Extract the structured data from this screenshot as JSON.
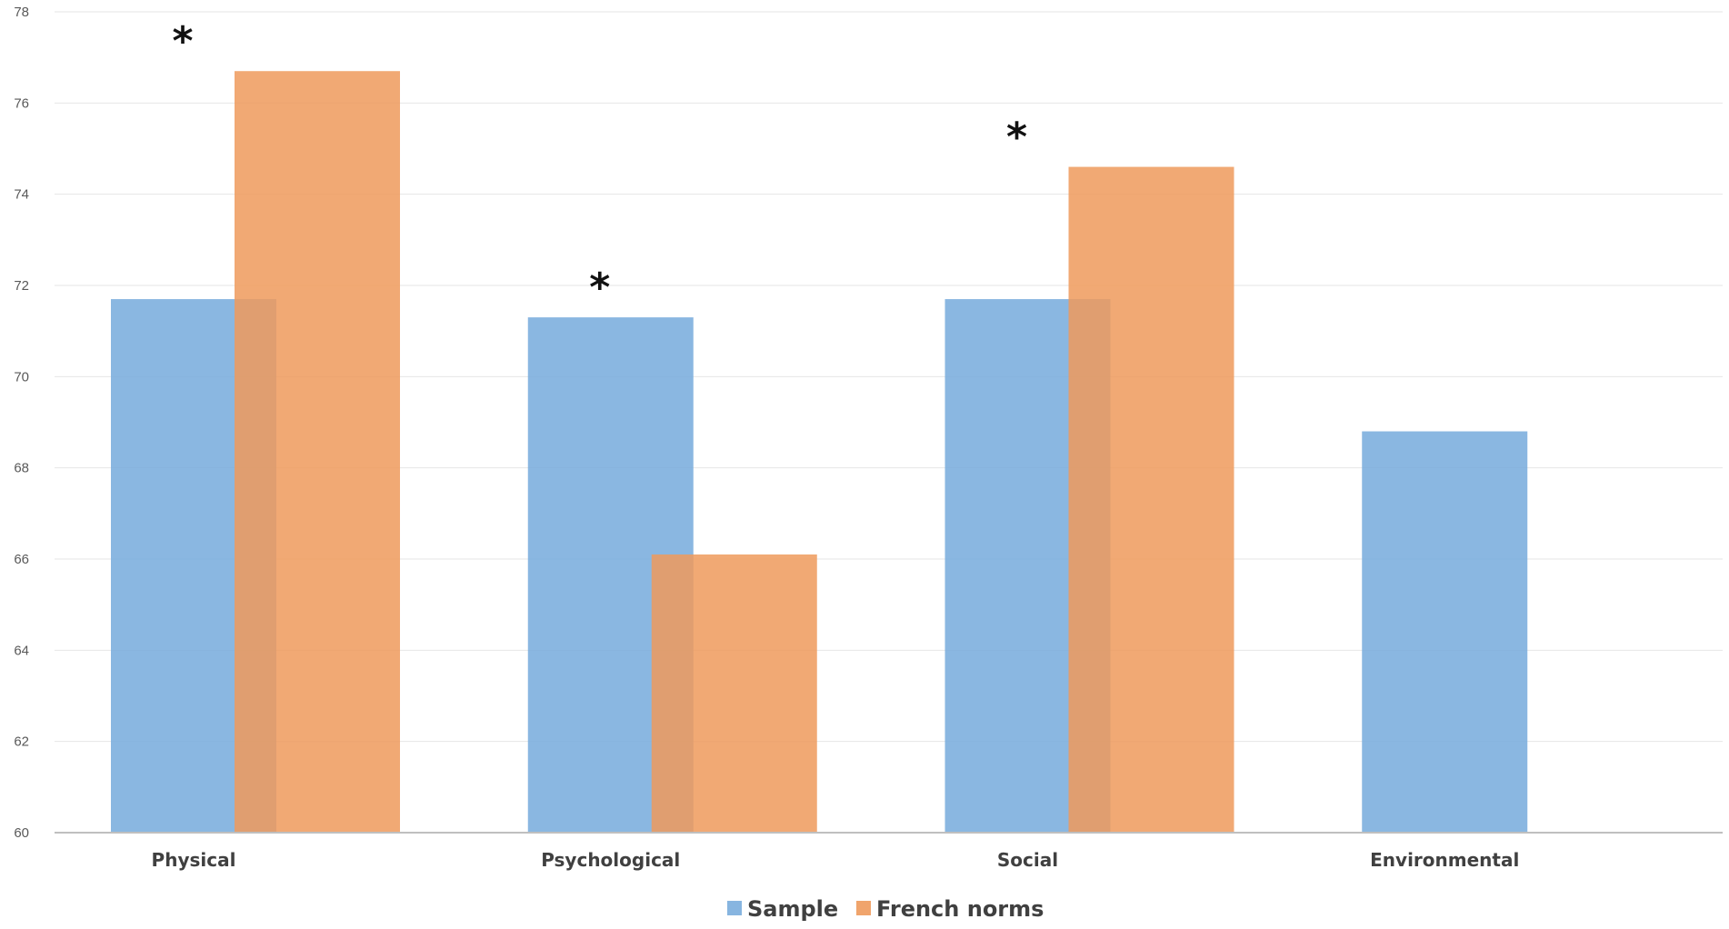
{
  "chart_data": {
    "type": "bar",
    "title": "",
    "xlabel": "",
    "ylabel": "",
    "categories": [
      "Physical",
      "Psychological",
      "Social",
      "Environmental"
    ],
    "series": [
      {
        "name": "Sample",
        "values": [
          71.7,
          71.3,
          71.7,
          68.8
        ]
      },
      {
        "name": "French norms",
        "values": [
          76.7,
          66.1,
          74.6,
          null
        ]
      }
    ],
    "ylim": [
      60,
      78
    ],
    "yticks": [
      60,
      62,
      64,
      66,
      68,
      70,
      72,
      74,
      76,
      78
    ],
    "grid": true,
    "legend_position": "bottom",
    "annotations": [
      {
        "category": "Physical",
        "text": "*"
      },
      {
        "category": "Psychological",
        "text": "*"
      },
      {
        "category": "Social",
        "text": "*"
      }
    ],
    "colors": {
      "Sample": "#7aaddd",
      "French norms": "#ee9a5c"
    }
  }
}
